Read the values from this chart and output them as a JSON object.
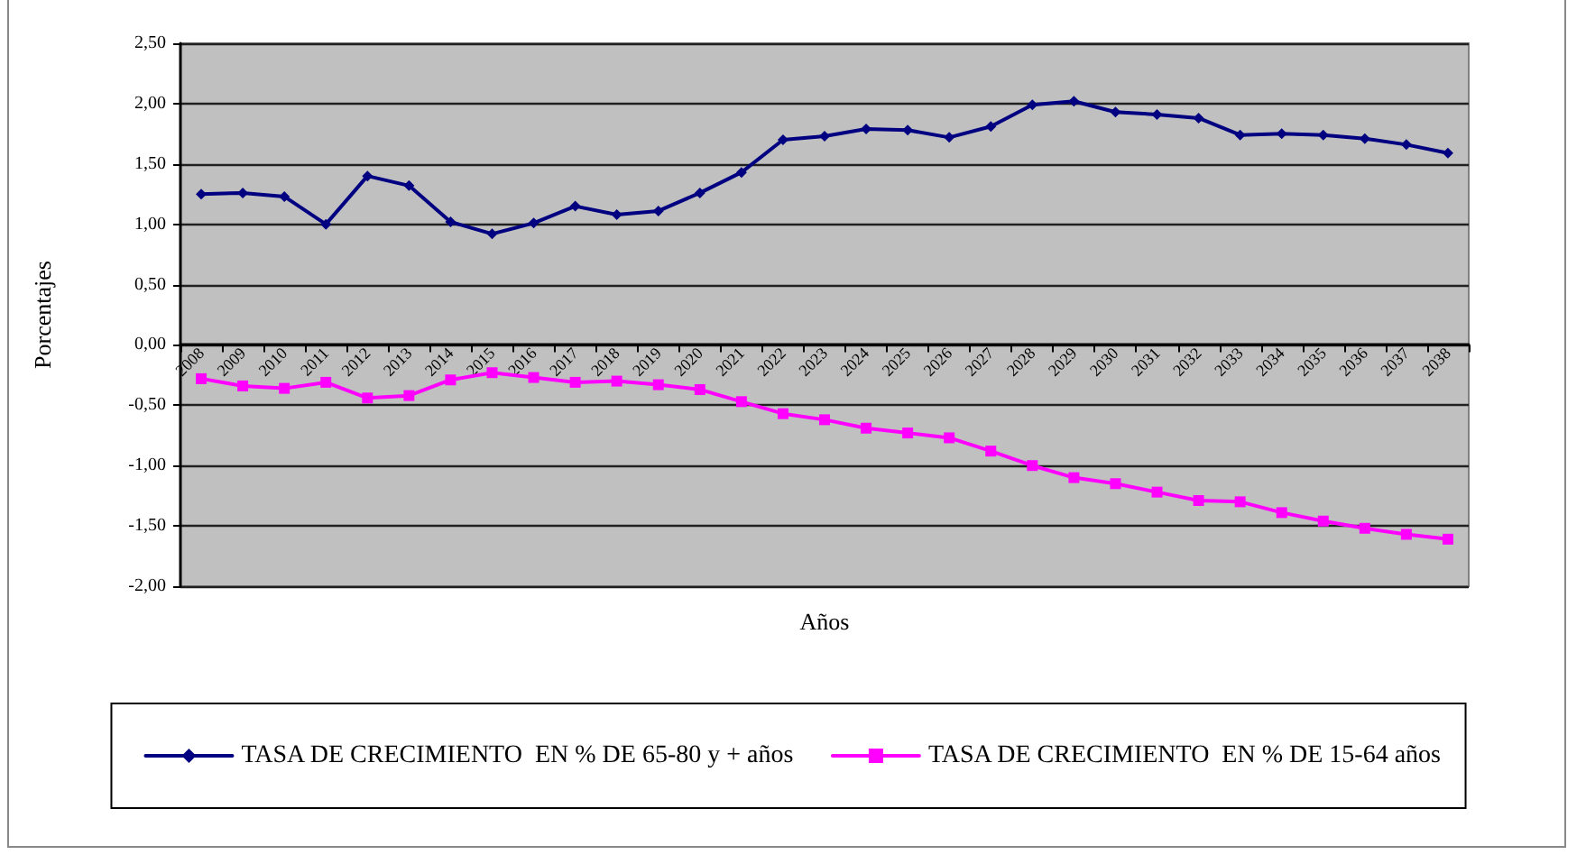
{
  "chart_data": {
    "type": "line",
    "xlabel": "Años",
    "ylabel": "Porcentajes",
    "categories": [
      "2008",
      "2009",
      "2010",
      "2011",
      "2012",
      "2013",
      "2014",
      "2015",
      "2016",
      "2017",
      "2018",
      "2019",
      "2020",
      "2021",
      "2022",
      "2023",
      "2024",
      "2025",
      "2026",
      "2027",
      "2028",
      "2029",
      "2030",
      "2031",
      "2032",
      "2033",
      "2034",
      "2035",
      "2036",
      "2037",
      "2038"
    ],
    "series": [
      {
        "name": "TASA DE CRECIMIENTO  EN % DE 65-80 y + años",
        "color": "#000080",
        "marker": "diamond",
        "values": [
          1.25,
          1.26,
          1.23,
          1.0,
          1.4,
          1.32,
          1.02,
          0.92,
          1.01,
          1.15,
          1.08,
          1.11,
          1.26,
          1.43,
          1.7,
          1.73,
          1.79,
          1.78,
          1.72,
          1.81,
          1.99,
          2.02,
          1.93,
          1.91,
          1.88,
          1.74,
          1.75,
          1.74,
          1.71,
          1.66,
          1.59
        ]
      },
      {
        "name": "TASA DE CRECIMIENTO  EN % DE 15-64 años",
        "color": "#ff00ff",
        "marker": "square",
        "values": [
          -0.28,
          -0.34,
          -0.36,
          -0.31,
          -0.44,
          -0.42,
          -0.29,
          -0.23,
          -0.27,
          -0.31,
          -0.3,
          -0.33,
          -0.37,
          -0.47,
          -0.57,
          -0.62,
          -0.69,
          -0.73,
          -0.77,
          -0.88,
          -1.0,
          -1.1,
          -1.15,
          -1.22,
          -1.29,
          -1.3,
          -1.39,
          -1.46,
          -1.52,
          -1.57,
          -1.61
        ]
      }
    ],
    "ylim": [
      -2,
      2.5
    ],
    "yticks": [
      {
        "value": -2,
        "label": "-2,00"
      },
      {
        "value": -1.5,
        "label": "-1,50"
      },
      {
        "value": -1,
        "label": "-1,00"
      },
      {
        "value": -0.5,
        "label": "-0,50"
      },
      {
        "value": 0,
        "label": "0,00"
      },
      {
        "value": 0.5,
        "label": "0,50"
      },
      {
        "value": 1,
        "label": "1,00"
      },
      {
        "value": 1.5,
        "label": "1,50"
      },
      {
        "value": 2,
        "label": "2,00"
      },
      {
        "value": 2.5,
        "label": "2,50"
      }
    ],
    "grid": "y",
    "legend": "bottom",
    "line_style": "solid"
  }
}
